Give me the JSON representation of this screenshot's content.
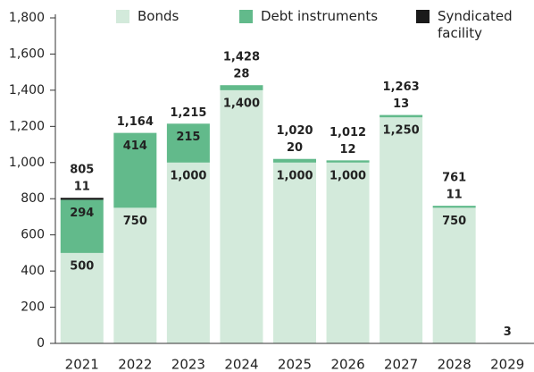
{
  "chart_data": {
    "type": "stacked_bar",
    "categories": [
      "2021",
      "2022",
      "2023",
      "2024",
      "2025",
      "2026",
      "2027",
      "2028",
      "2029"
    ],
    "series": [
      {
        "name": "Bonds",
        "color": "#d3eadb",
        "values": [
          500,
          750,
          1000,
          1400,
          1000,
          1000,
          1250,
          750,
          3
        ],
        "value_labels": [
          "500",
          "750",
          "1,000",
          "1,400",
          "1,000",
          "1,000",
          "1,250",
          "750",
          "3"
        ]
      },
      {
        "name": "Debt instruments",
        "color": "#62ba8b",
        "values": [
          294,
          414,
          215,
          28,
          20,
          12,
          13,
          11,
          0
        ],
        "value_labels": [
          "294",
          "414",
          "215",
          "28",
          "20",
          "12",
          "13",
          "11",
          null
        ]
      },
      {
        "name": "Syndicated facility",
        "color": "#1a1a1a",
        "values": [
          11,
          0,
          0,
          0,
          0,
          0,
          0,
          0,
          0
        ],
        "value_labels": [
          "11",
          null,
          null,
          null,
          null,
          null,
          null,
          null,
          null
        ]
      }
    ],
    "totals": [
      805,
      1164,
      1215,
      1428,
      1020,
      1012,
      1263,
      761,
      null
    ],
    "total_labels": [
      "805",
      "1,164",
      "1,215",
      "1,428",
      "1,020",
      "1,012",
      "1,263",
      "761",
      null
    ],
    "ylim": [
      0,
      1800
    ],
    "yticks": [
      0,
      200,
      400,
      600,
      800,
      {
        "value": 1000,
        "label": "1,000"
      },
      {
        "value": 1200,
        "label": "1,200"
      },
      {
        "value": 1400,
        "label": "1,400"
      },
      {
        "value": 1600,
        "label": "1,600"
      },
      {
        "value": 1800,
        "label": "1,800"
      }
    ],
    "grid": false
  }
}
